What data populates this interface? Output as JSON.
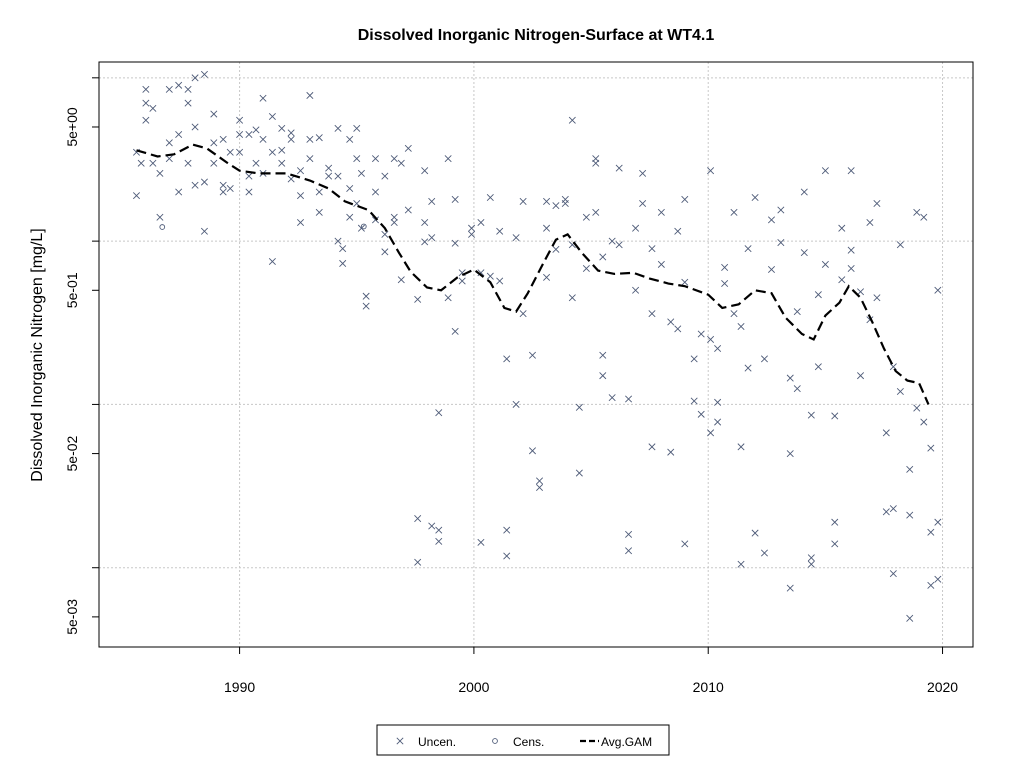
{
  "chart_data": {
    "type": "scatter",
    "title": "Dissolved Inorganic Nitrogen-Surface at WT4.1",
    "y_label": "Dissolved Inorganic Nitrogen [mg/L]",
    "log_y": true,
    "grid": true,
    "legend_position": "bottom",
    "xlim": [
      1984.0,
      2021.3
    ],
    "xticks": [
      1990,
      2000,
      2010,
      2020
    ],
    "ylim": [
      0.00327,
      12.5
    ],
    "yticks": [
      {
        "value": 5,
        "label": "5e+00"
      },
      {
        "value": 0.5,
        "label": "5e-01"
      },
      {
        "value": 0.05,
        "label": "5e-02"
      },
      {
        "value": 0.005,
        "label": "5e-03"
      }
    ],
    "ygrid": [
      10,
      1,
      0.1,
      0.01
    ],
    "series": [
      {
        "name": "Uncen.",
        "marker": "x",
        "color": "#4e5b78",
        "x": [
          1985.6,
          1985.6,
          1985.8,
          1986,
          1986,
          1986,
          1986.3,
          1986.3,
          1986.6,
          1986.6,
          1987,
          1987,
          1987,
          1987.4,
          1987.4,
          1987.4,
          1987.8,
          1987.8,
          1987.8,
          1988.1,
          1988.1,
          1988.1,
          1988.5,
          1988.5,
          1988.5,
          1988.9,
          1988.9,
          1988.9,
          1989.3,
          1989.3,
          1989.3,
          1989.6,
          1989.6,
          1990,
          1990,
          1990,
          1990.4,
          1990.4,
          1990.4,
          1990.7,
          1990.7,
          1991,
          1991,
          1991,
          1991.4,
          1991.4,
          1991.4,
          1991.8,
          1991.8,
          1991.8,
          1992.2,
          1992.2,
          1992.2,
          1992.6,
          1992.6,
          1992.6,
          1993,
          1993,
          1993,
          1993.4,
          1993.4,
          1993.4,
          1993.8,
          1993.8,
          1994.2,
          1994.2,
          1994.2,
          1994.4,
          1994.4,
          1994.7,
          1994.7,
          1994.7,
          1995,
          1995,
          1995,
          1995.2,
          1995.2,
          1995.4,
          1995.4,
          1995.8,
          1995.8,
          1995.8,
          1996.2,
          1996.2,
          1996.2,
          1996.6,
          1996.6,
          1996.6,
          1996.9,
          1996.9,
          1997.2,
          1997.2,
          1997.6,
          1997.6,
          1997.6,
          1997.9,
          1997.9,
          1997.9,
          1998.2,
          1998.2,
          1998.2,
          1998.5,
          1998.5,
          1998.5,
          1998.9,
          1998.9,
          1999.2,
          1999.2,
          1999.2,
          1999.5,
          1999.5,
          1999.9,
          1999.9,
          2000.3,
          2000.3,
          2000.3,
          2000.7,
          2000.7,
          2001.1,
          2001.1,
          2001.4,
          2001.4,
          2001.4,
          2001.8,
          2001.8,
          2002.1,
          2002.1,
          2002.5,
          2002.5,
          2002.8,
          2002.8,
          2003.1,
          2003.1,
          2003.1,
          2003.5,
          2003.5,
          2003.9,
          2003.9,
          2004.2,
          2004.2,
          2004.2,
          2004.5,
          2004.5,
          2004.8,
          2004.8,
          2005.2,
          2005.2,
          2005.2,
          2005.5,
          2005.5,
          2005.5,
          2005.9,
          2005.9,
          2006.2,
          2006.2,
          2006.6,
          2006.6,
          2006.6,
          2006.9,
          2006.9,
          2007.2,
          2007.2,
          2007.6,
          2007.6,
          2007.6,
          2008,
          2008,
          2008.4,
          2008.4,
          2008.7,
          2008.7,
          2009,
          2009,
          2009,
          2009.4,
          2009.4,
          2009.7,
          2009.7,
          2010.1,
          2010.1,
          2010.1,
          2010.4,
          2010.4,
          2010.4,
          2010.7,
          2010.7,
          2011.1,
          2011.1,
          2011.4,
          2011.4,
          2011.4,
          2011.7,
          2011.7,
          2012,
          2012,
          2012.4,
          2012.4,
          2012.7,
          2012.7,
          2013.1,
          2013.1,
          2013.5,
          2013.5,
          2013.5,
          2013.8,
          2013.8,
          2014.1,
          2014.1,
          2014.4,
          2014.4,
          2014.4,
          2014.7,
          2014.7,
          2015,
          2015,
          2015.4,
          2015.4,
          2015.4,
          2015.7,
          2015.7,
          2016.1,
          2016.1,
          2016.1,
          2016.5,
          2016.5,
          2016.9,
          2016.9,
          2017.2,
          2017.2,
          2017.6,
          2017.6,
          2017.9,
          2017.9,
          2017.9,
          2018.2,
          2018.2,
          2018.6,
          2018.6,
          2018.6,
          2018.9,
          2018.9,
          2019.2,
          2019.2,
          2019.5,
          2019.5,
          2019.5,
          2019.8,
          2019.8,
          2019.8
        ],
        "values": [
          3.5,
          1.9,
          3.0,
          5.5,
          8.5,
          7,
          6.5,
          3,
          2.6,
          1.4,
          3.2,
          8.5,
          4,
          9,
          4.5,
          2,
          3,
          8.5,
          7,
          10,
          5,
          2.2,
          10.5,
          2.3,
          1.15,
          6,
          4,
          3,
          4.2,
          2.2,
          2.0,
          3.5,
          2.1,
          5.5,
          4.5,
          3.5,
          4.5,
          2.0,
          2.5,
          4.8,
          3.0,
          7.5,
          4.2,
          2.6,
          5.8,
          3.5,
          0.75,
          4.9,
          3.6,
          3,
          4.6,
          4.2,
          2.4,
          2.7,
          1.9,
          1.3,
          7.8,
          4.2,
          3.2,
          2.0,
          4.3,
          1.5,
          2.5,
          2.8,
          4.9,
          2.5,
          1.0,
          0.9,
          0.73,
          4.2,
          2.1,
          1.4,
          4.9,
          3.2,
          1.7,
          2.6,
          1.2,
          0.4,
          0.46,
          1.35,
          2.0,
          3.2,
          2.5,
          1.1,
          0.86,
          3.2,
          1.3,
          1.4,
          0.58,
          3.0,
          3.7,
          1.55,
          0.02,
          0.0108,
          0.44,
          1.3,
          0.99,
          2.7,
          1.75,
          1.05,
          0.018,
          0.017,
          0.0145,
          0.089,
          0.45,
          3.2,
          1.8,
          0.28,
          0.97,
          0.57,
          0.64,
          1.2,
          1.1,
          1.3,
          0.64,
          0.0143,
          1.85,
          0.61,
          1.15,
          0.57,
          0.017,
          0.0118,
          0.19,
          1.05,
          0.1,
          1.75,
          0.36,
          0.052,
          0.2,
          0.034,
          0.031,
          1.75,
          0.6,
          1.2,
          1.65,
          0.89,
          1.7,
          1.8,
          5.5,
          0.45,
          0.95,
          0.038,
          0.096,
          1.4,
          0.68,
          3.2,
          3.0,
          1.5,
          0.2,
          0.15,
          0.8,
          1.0,
          0.11,
          2.8,
          0.95,
          0.108,
          0.0127,
          0.016,
          1.2,
          0.5,
          2.6,
          1.7,
          0.055,
          0.36,
          0.9,
          1.5,
          0.72,
          0.051,
          0.32,
          1.15,
          0.29,
          0.014,
          0.56,
          1.8,
          0.19,
          0.105,
          0.087,
          0.27,
          2.7,
          0.25,
          0.067,
          0.103,
          0.078,
          0.22,
          0.69,
          0.55,
          1.5,
          0.36,
          0.0105,
          0.055,
          0.3,
          0.167,
          0.9,
          1.85,
          0.0163,
          0.19,
          0.0123,
          0.67,
          1.35,
          1.55,
          0.98,
          0.0075,
          0.05,
          0.145,
          0.125,
          0.37,
          2.0,
          0.85,
          0.0115,
          0.0105,
          0.086,
          0.17,
          0.47,
          2.7,
          0.72,
          0.019,
          0.014,
          0.085,
          1.2,
          0.58,
          0.68,
          0.88,
          2.7,
          0.15,
          0.49,
          0.33,
          1.3,
          1.7,
          0.45,
          0.067,
          0.022,
          0.0092,
          0.17,
          0.023,
          0.95,
          0.12,
          0.021,
          0.0049,
          0.04,
          1.5,
          0.095,
          1.4,
          0.078,
          0.054,
          0.0165,
          0.0078,
          0.019,
          0.0085,
          0.5
        ]
      },
      {
        "name": "Cens.",
        "marker": "o",
        "color": "#4e5b78",
        "x": [
          1986.7,
          1995.3
        ],
        "values": [
          1.22,
          1.23
        ]
      },
      {
        "name": "Avg.GAM",
        "marker": "dashed-line",
        "color": "#000000",
        "x": [
          1985.6,
          1986.5,
          1987.2,
          1988,
          1988.6,
          1989.5,
          1990,
          1990.8,
          1992,
          1993,
          1993.8,
          1994.5,
          1995.5,
          1996.2,
          1996.8,
          1997.3,
          1998,
          1998.6,
          1999.3,
          2000,
          2000.7,
          2001.3,
          2001.8,
          2002.3,
          2003,
          2003.5,
          2004,
          2004.6,
          2005.3,
          2006,
          2006.8,
          2007.5,
          2008.3,
          2009,
          2010,
          2010.6,
          2011.3,
          2012,
          2012.7,
          2013.3,
          2014,
          2014.5,
          2015,
          2015.6,
          2016,
          2016.5,
          2017,
          2017.5,
          2018,
          2018.5,
          2019,
          2019.4
        ],
        "values": [
          3.6,
          3.3,
          3.4,
          3.9,
          3.7,
          3.0,
          2.7,
          2.6,
          2.6,
          2.35,
          2.1,
          1.75,
          1.55,
          1.2,
          0.85,
          0.65,
          0.52,
          0.5,
          0.6,
          0.67,
          0.56,
          0.39,
          0.37,
          0.48,
          0.75,
          1.02,
          1.1,
          0.85,
          0.66,
          0.63,
          0.64,
          0.59,
          0.55,
          0.53,
          0.47,
          0.39,
          0.41,
          0.5,
          0.48,
          0.34,
          0.27,
          0.25,
          0.35,
          0.42,
          0.53,
          0.45,
          0.32,
          0.22,
          0.16,
          0.14,
          0.135,
          0.1
        ]
      }
    ]
  }
}
